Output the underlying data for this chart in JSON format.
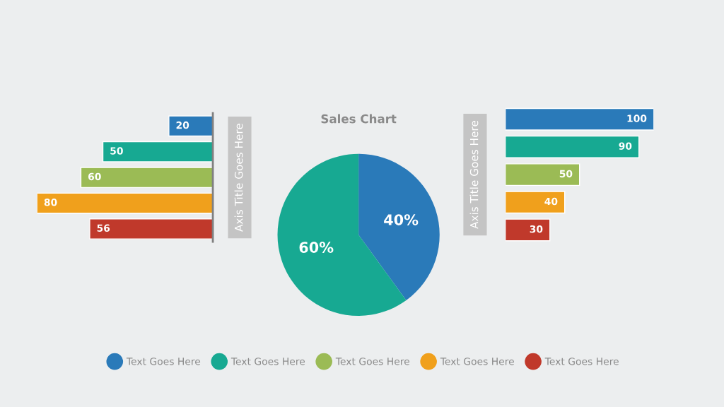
{
  "chart_data": [
    {
      "type": "bar",
      "orientation": "horizontal",
      "categories": [
        null,
        null,
        null,
        null,
        null
      ],
      "xlim": [
        80,
        0
      ],
      "ylabel": "Axis Title Goes Here",
      "data_labels": true,
      "values": [
        20,
        50,
        60,
        80,
        56
      ],
      "colors": [
        "#2a7ab9",
        "#17a992",
        "#9bbb55",
        "#f0a01c",
        "#c0392b"
      ]
    },
    {
      "type": "pie",
      "title": "Sales Chart",
      "categories": [
        null,
        null
      ],
      "values": [
        40,
        60
      ],
      "colors": [
        "#2a7ab9",
        "#17a992"
      ],
      "value_labels": [
        "40%",
        "60%"
      ]
    },
    {
      "type": "bar",
      "orientation": "horizontal",
      "categories": [
        null,
        null,
        null,
        null,
        null
      ],
      "xlim": [
        0,
        100
      ],
      "ylabel": "Axis Title Goes Here",
      "data_labels": true,
      "values": [
        100,
        90,
        50,
        40,
        30
      ],
      "colors": [
        "#2a7ab9",
        "#17a992",
        "#9bbb55",
        "#f0a01c",
        "#c0392b"
      ]
    },
    {
      "type": "other",
      "legend": "bottom",
      "series": [
        {
          "name": "Text Goes Here",
          "color": "#2a7ab9"
        },
        {
          "name": "Text Goes Here",
          "color": "#17a992"
        },
        {
          "name": "Text Goes Here",
          "color": "#9bbb55"
        },
        {
          "name": "Text Goes Here",
          "color": "#f0a01c"
        },
        {
          "name": "Text Goes Here",
          "color": "#c0392b"
        }
      ]
    }
  ]
}
